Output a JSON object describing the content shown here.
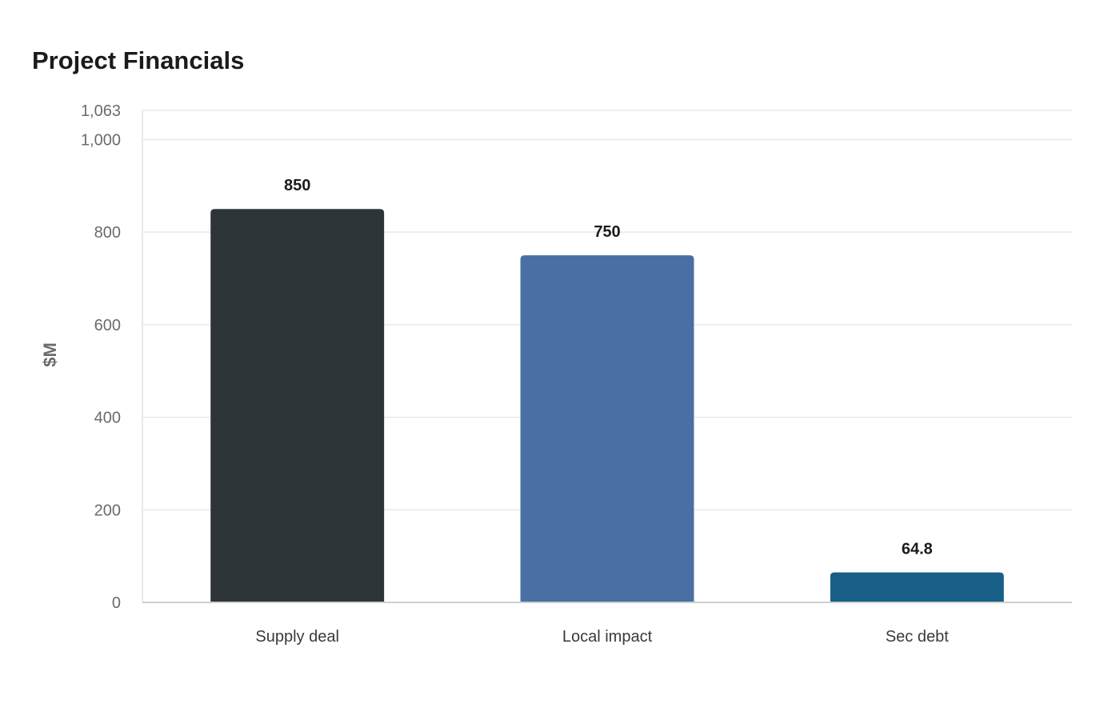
{
  "chart_data": {
    "type": "bar",
    "title": "Project Financials",
    "xlabel": "",
    "ylabel": "$M",
    "categories": [
      "Supply deal",
      "Local impact",
      "Sec debt"
    ],
    "values": [
      850,
      750,
      64.8
    ],
    "value_labels": [
      "850",
      "750",
      "64.8"
    ],
    "colors": [
      "#2e3538",
      "#4a6fa5",
      "#185f88"
    ],
    "ylim": [
      0,
      1063
    ],
    "yticks": [
      0,
      200,
      400,
      600,
      800,
      1000,
      1063
    ],
    "ytick_labels": [
      "0",
      "200",
      "400",
      "600",
      "800",
      "1,000",
      "1,063"
    ],
    "grid": true,
    "legend": "none"
  }
}
